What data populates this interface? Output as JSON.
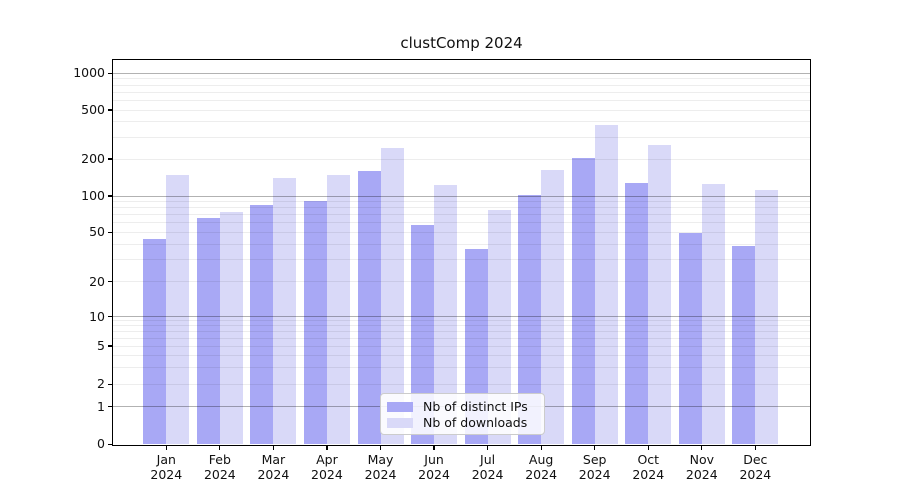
{
  "title": "clustComp 2024",
  "chart_data": {
    "type": "bar",
    "title": "clustComp 2024",
    "categories": [
      "Jan",
      "Feb",
      "Mar",
      "Apr",
      "May",
      "Jun",
      "Jul",
      "Aug",
      "Sep",
      "Oct",
      "Nov",
      "Dec"
    ],
    "category_year_label": "2024",
    "series": [
      {
        "name": "Nb of distinct IPs",
        "color": "#a8a8f5",
        "values": [
          44,
          66,
          85,
          91,
          161,
          57,
          37,
          101,
          202,
          128,
          49,
          39
        ]
      },
      {
        "name": "Nb of downloads",
        "color": "#d9d9f8",
        "values": [
          147,
          74,
          140,
          149,
          245,
          123,
          77,
          163,
          375,
          260,
          125,
          112
        ]
      }
    ],
    "xlabel": "",
    "ylabel": "",
    "y_scale": "log-like",
    "y_tick_values": [
      0,
      1,
      2,
      5,
      10,
      20,
      50,
      100,
      200,
      500,
      1000
    ],
    "y_tick_labels": [
      "0",
      "1",
      "2",
      "5",
      "10",
      "20",
      "50",
      "100",
      "200",
      "500",
      "1000"
    ],
    "ylim": [
      0,
      1000
    ],
    "grid": true,
    "major_grid_values": [
      1,
      10,
      100,
      1000
    ],
    "minor_grid_values": [
      2,
      3,
      4,
      5,
      6,
      7,
      8,
      9,
      20,
      30,
      40,
      50,
      60,
      70,
      80,
      90,
      200,
      300,
      400,
      500,
      600,
      700,
      800,
      900
    ],
    "legend_position": "bottom-center-inside"
  },
  "legend": {
    "items": [
      {
        "label": "Nb of distinct IPs",
        "color": "#a8a8f5"
      },
      {
        "label": "Nb of downloads",
        "color": "#d9d9f8"
      }
    ]
  },
  "colors": {
    "background": "#ffffff",
    "axis": "#000000",
    "bar_distinct_ips": "#a8a8f5",
    "bar_downloads": "#d9d9f8"
  }
}
